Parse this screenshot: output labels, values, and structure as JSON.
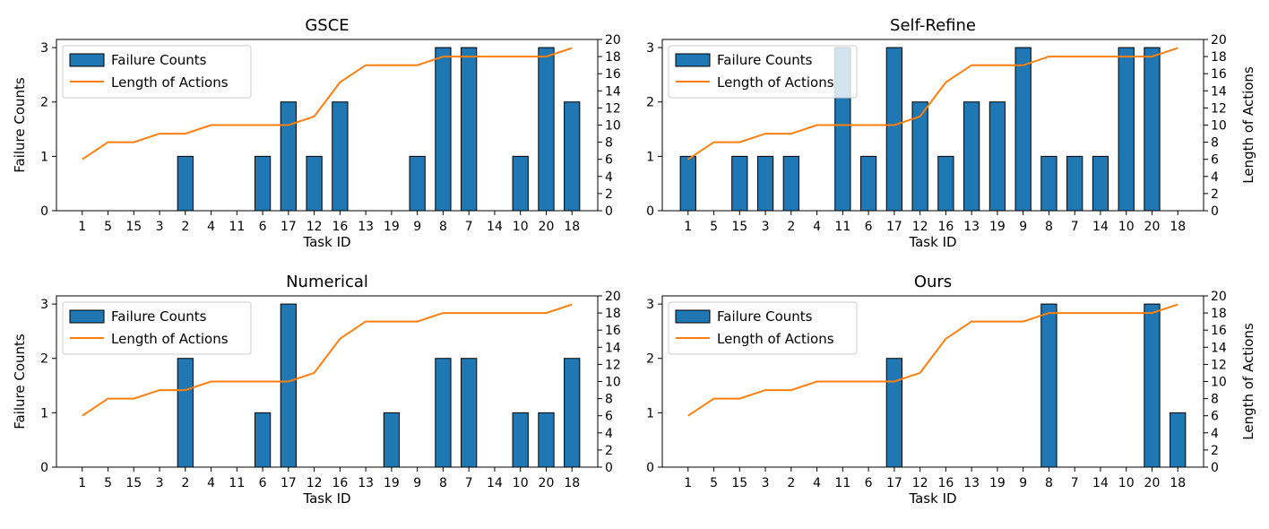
{
  "figure": {
    "legend_labels": [
      "Failure Counts",
      "Length of Actions"
    ]
  },
  "colors": {
    "bar": "#1f77b4",
    "bar_edge": "#000000",
    "line": "#ff7f0e"
  },
  "chart_data": [
    {
      "type": "bar",
      "title": "GSCE",
      "xlabel": "Task ID",
      "ylabel": "Failure Counts",
      "y2label": "",
      "categories": [
        "1",
        "5",
        "15",
        "3",
        "2",
        "4",
        "11",
        "6",
        "17",
        "12",
        "16",
        "13",
        "19",
        "9",
        "8",
        "7",
        "14",
        "10",
        "20",
        "18"
      ],
      "series": [
        {
          "name": "Failure Counts",
          "type": "bar",
          "axis": "left",
          "values": [
            0,
            0,
            0,
            0,
            1,
            0,
            0,
            1,
            2,
            1,
            2,
            0,
            0,
            1,
            3,
            3,
            0,
            1,
            3,
            2
          ]
        },
        {
          "name": "Length of Actions",
          "type": "line",
          "axis": "right",
          "values": [
            6,
            8,
            8,
            9,
            9,
            10,
            10,
            10,
            10,
            11,
            15,
            17,
            17,
            17,
            18,
            18,
            18,
            18,
            18,
            19
          ]
        }
      ],
      "ylim": [
        0,
        3.15
      ],
      "yticks": [
        0,
        1,
        2,
        3
      ],
      "y2lim": [
        0,
        20
      ],
      "y2ticks": [
        0,
        2,
        4,
        6,
        8,
        10,
        12,
        14,
        16,
        18,
        20
      ],
      "legend": "top-left",
      "grid": false
    },
    {
      "type": "bar",
      "title": "Self-Refine",
      "xlabel": "Task ID",
      "ylabel": "",
      "y2label": "Length of Actions",
      "categories": [
        "1",
        "5",
        "15",
        "3",
        "2",
        "4",
        "11",
        "6",
        "17",
        "12",
        "16",
        "13",
        "19",
        "9",
        "8",
        "7",
        "14",
        "10",
        "20",
        "18"
      ],
      "series": [
        {
          "name": "Failure Counts",
          "type": "bar",
          "axis": "left",
          "values": [
            1,
            0,
            1,
            1,
            1,
            0,
            3,
            1,
            3,
            2,
            1,
            2,
            2,
            3,
            1,
            1,
            1,
            3,
            3,
            0
          ]
        },
        {
          "name": "Length of Actions",
          "type": "line",
          "axis": "right",
          "values": [
            6,
            8,
            8,
            9,
            9,
            10,
            10,
            10,
            10,
            11,
            15,
            17,
            17,
            17,
            18,
            18,
            18,
            18,
            18,
            19
          ]
        }
      ],
      "ylim": [
        0,
        3.15
      ],
      "yticks": [
        0,
        1,
        2,
        3
      ],
      "y2lim": [
        0,
        20
      ],
      "y2ticks": [
        0,
        2,
        4,
        6,
        8,
        10,
        12,
        14,
        16,
        18,
        20
      ],
      "legend": "top-left",
      "grid": false
    },
    {
      "type": "bar",
      "title": "Numerical",
      "xlabel": "Task ID",
      "ylabel": "Failure Counts",
      "y2label": "",
      "categories": [
        "1",
        "5",
        "15",
        "3",
        "2",
        "4",
        "11",
        "6",
        "17",
        "12",
        "16",
        "13",
        "19",
        "9",
        "8",
        "7",
        "14",
        "10",
        "20",
        "18"
      ],
      "series": [
        {
          "name": "Failure Counts",
          "type": "bar",
          "axis": "left",
          "values": [
            0,
            0,
            0,
            0,
            2,
            0,
            0,
            1,
            3,
            0,
            0,
            0,
            1,
            0,
            2,
            2,
            0,
            1,
            1,
            2
          ]
        },
        {
          "name": "Length of Actions",
          "type": "line",
          "axis": "right",
          "values": [
            6,
            8,
            8,
            9,
            9,
            10,
            10,
            10,
            10,
            11,
            15,
            17,
            17,
            17,
            18,
            18,
            18,
            18,
            18,
            19
          ]
        }
      ],
      "ylim": [
        0,
        3.15
      ],
      "yticks": [
        0,
        1,
        2,
        3
      ],
      "y2lim": [
        0,
        20
      ],
      "y2ticks": [
        0,
        2,
        4,
        6,
        8,
        10,
        12,
        14,
        16,
        18,
        20
      ],
      "legend": "top-left",
      "grid": false
    },
    {
      "type": "bar",
      "title": "Ours",
      "xlabel": "Task ID",
      "ylabel": "",
      "y2label": "Length of Actions",
      "categories": [
        "1",
        "5",
        "15",
        "3",
        "2",
        "4",
        "11",
        "6",
        "17",
        "12",
        "16",
        "13",
        "19",
        "9",
        "8",
        "7",
        "14",
        "10",
        "20",
        "18"
      ],
      "series": [
        {
          "name": "Failure Counts",
          "type": "bar",
          "axis": "left",
          "values": [
            0,
            0,
            0,
            0,
            0,
            0,
            0,
            0,
            2,
            0,
            0,
            0,
            0,
            0,
            3,
            0,
            0,
            0,
            3,
            1
          ]
        },
        {
          "name": "Length of Actions",
          "type": "line",
          "axis": "right",
          "values": [
            6,
            8,
            8,
            9,
            9,
            10,
            10,
            10,
            10,
            11,
            15,
            17,
            17,
            17,
            18,
            18,
            18,
            18,
            18,
            19
          ]
        }
      ],
      "ylim": [
        0,
        3.15
      ],
      "yticks": [
        0,
        1,
        2,
        3
      ],
      "y2lim": [
        0,
        20
      ],
      "y2ticks": [
        0,
        2,
        4,
        6,
        8,
        10,
        12,
        14,
        16,
        18,
        20
      ],
      "legend": "top-left",
      "grid": false
    }
  ]
}
